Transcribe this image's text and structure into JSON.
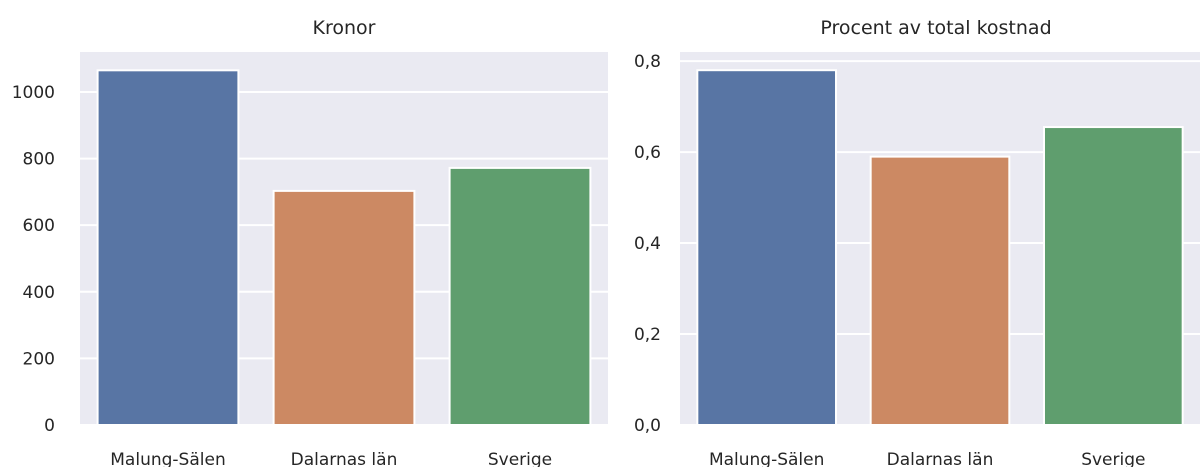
{
  "chart_data": [
    {
      "type": "bar",
      "title": "Kronor",
      "xlabel": "",
      "ylabel": "",
      "categories": [
        "Malung-Sälen",
        "Dalarnas län",
        "Sverige"
      ],
      "values": [
        1065,
        703,
        772
      ],
      "ylim": [
        0,
        1120
      ],
      "yticks": [
        0,
        200,
        400,
        600,
        800,
        1000
      ],
      "ytick_labels": [
        "0",
        "200",
        "400",
        "600",
        "800",
        "1000"
      ],
      "grid": true,
      "colors": [
        "#5875a4",
        "#cc8963",
        "#5f9e6e"
      ],
      "background": "#eaeaf2"
    },
    {
      "type": "bar",
      "title": "Procent av total kostnad",
      "xlabel": "",
      "ylabel": "",
      "categories": [
        "Malung-Sälen",
        "Dalarnas län",
        "Sverige"
      ],
      "values": [
        0.78,
        0.59,
        0.655
      ],
      "ylim": [
        0,
        0.82
      ],
      "yticks": [
        0,
        0.2,
        0.4,
        0.6,
        0.8
      ],
      "ytick_labels": [
        "0,0",
        "0,2",
        "0,4",
        "0,6",
        "0,8"
      ],
      "grid": true,
      "colors": [
        "#5875a4",
        "#cc8963",
        "#5f9e6e"
      ],
      "background": "#eaeaf2"
    }
  ]
}
